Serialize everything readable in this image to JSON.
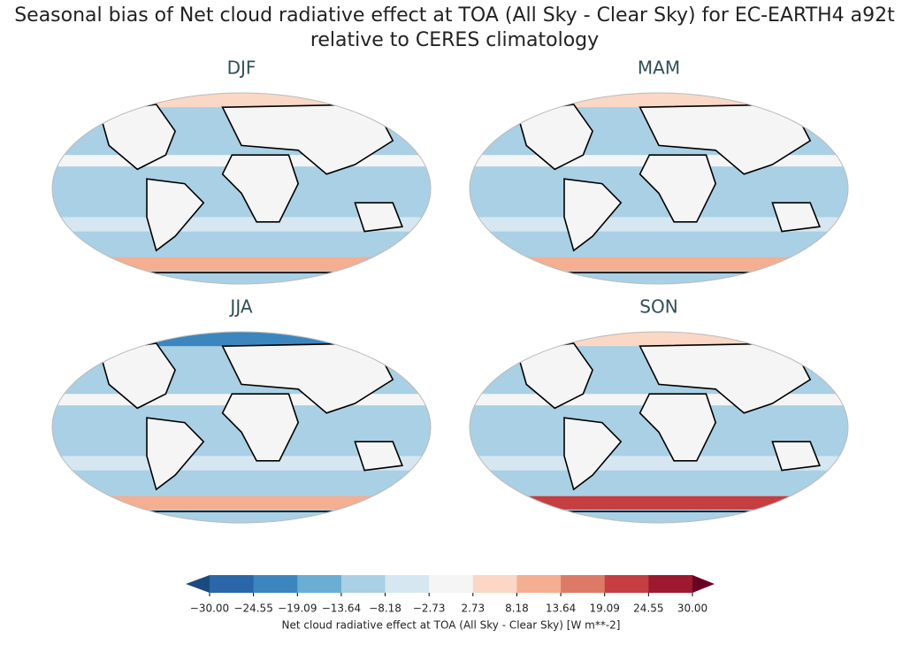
{
  "title": [
    "Seasonal bias of Net cloud radiative effect at TOA (All Sky - Clear Sky) for EC-EARTH4 a92t",
    "relative to CERES climatology"
  ],
  "panels": [
    {
      "title": "DJF"
    },
    {
      "title": "MAM"
    },
    {
      "title": "JJA"
    },
    {
      "title": "SON"
    }
  ],
  "colorbar": {
    "label": "Net cloud radiative effect at TOA (All Sky - Clear Sky) [W m**-2]",
    "ticks": [
      {
        "value": -30,
        "label": "−30.00"
      },
      {
        "value": -24.55,
        "label": "−24.55"
      },
      {
        "value": -19.09,
        "label": "−19.09"
      },
      {
        "value": -13.64,
        "label": "−13.64"
      },
      {
        "value": -8.18,
        "label": "−8.18"
      },
      {
        "value": -2.73,
        "label": "−2.73"
      },
      {
        "value": 2.73,
        "label": "2.73"
      },
      {
        "value": 8.18,
        "label": "8.18"
      },
      {
        "value": 13.64,
        "label": "13.64"
      },
      {
        "value": 19.09,
        "label": "19.09"
      },
      {
        "value": 24.55,
        "label": "24.55"
      },
      {
        "value": 30,
        "label": "30.00"
      }
    ],
    "colors": [
      "#2a66a8",
      "#3c86bf",
      "#6aaed3",
      "#a9d0e5",
      "#d6e7f1",
      "#f5f5f5",
      "#fbd7c5",
      "#f4ae91",
      "#dd7a67",
      "#c53e41",
      "#9e1830"
    ],
    "under_color": "#1b4a80",
    "over_color": "#6a0022"
  }
}
